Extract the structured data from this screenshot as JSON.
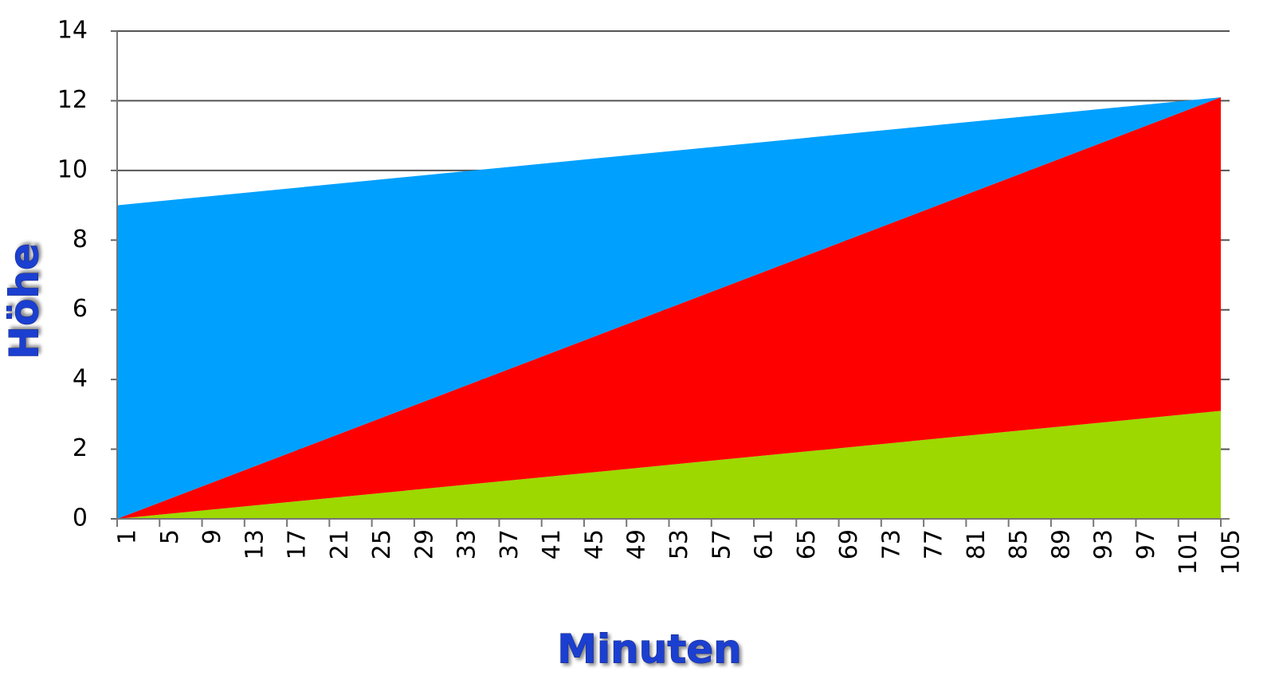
{
  "chart_data": {
    "type": "area",
    "stacked": true,
    "x_label": "Minuten",
    "y_label": "Höhe",
    "x": [
      1,
      105
    ],
    "series": [
      {
        "name": "Grün",
        "color": "#9dd800",
        "values": [
          0,
          3.1
        ]
      },
      {
        "name": "Rot",
        "color": "#ff0000",
        "values": [
          0,
          9
        ]
      },
      {
        "name": "Blau",
        "color": "#00a0ff",
        "values": [
          9,
          0
        ]
      }
    ],
    "xlim": [
      1,
      105
    ],
    "xticks": [
      1,
      5,
      9,
      13,
      17,
      21,
      25,
      29,
      33,
      37,
      41,
      45,
      49,
      53,
      57,
      61,
      65,
      69,
      73,
      77,
      81,
      85,
      89,
      93,
      97,
      101,
      105
    ],
    "ylim": [
      0,
      14
    ],
    "yticks": [
      0,
      2,
      4,
      6,
      8,
      10,
      12,
      14
    ],
    "grid": true
  }
}
